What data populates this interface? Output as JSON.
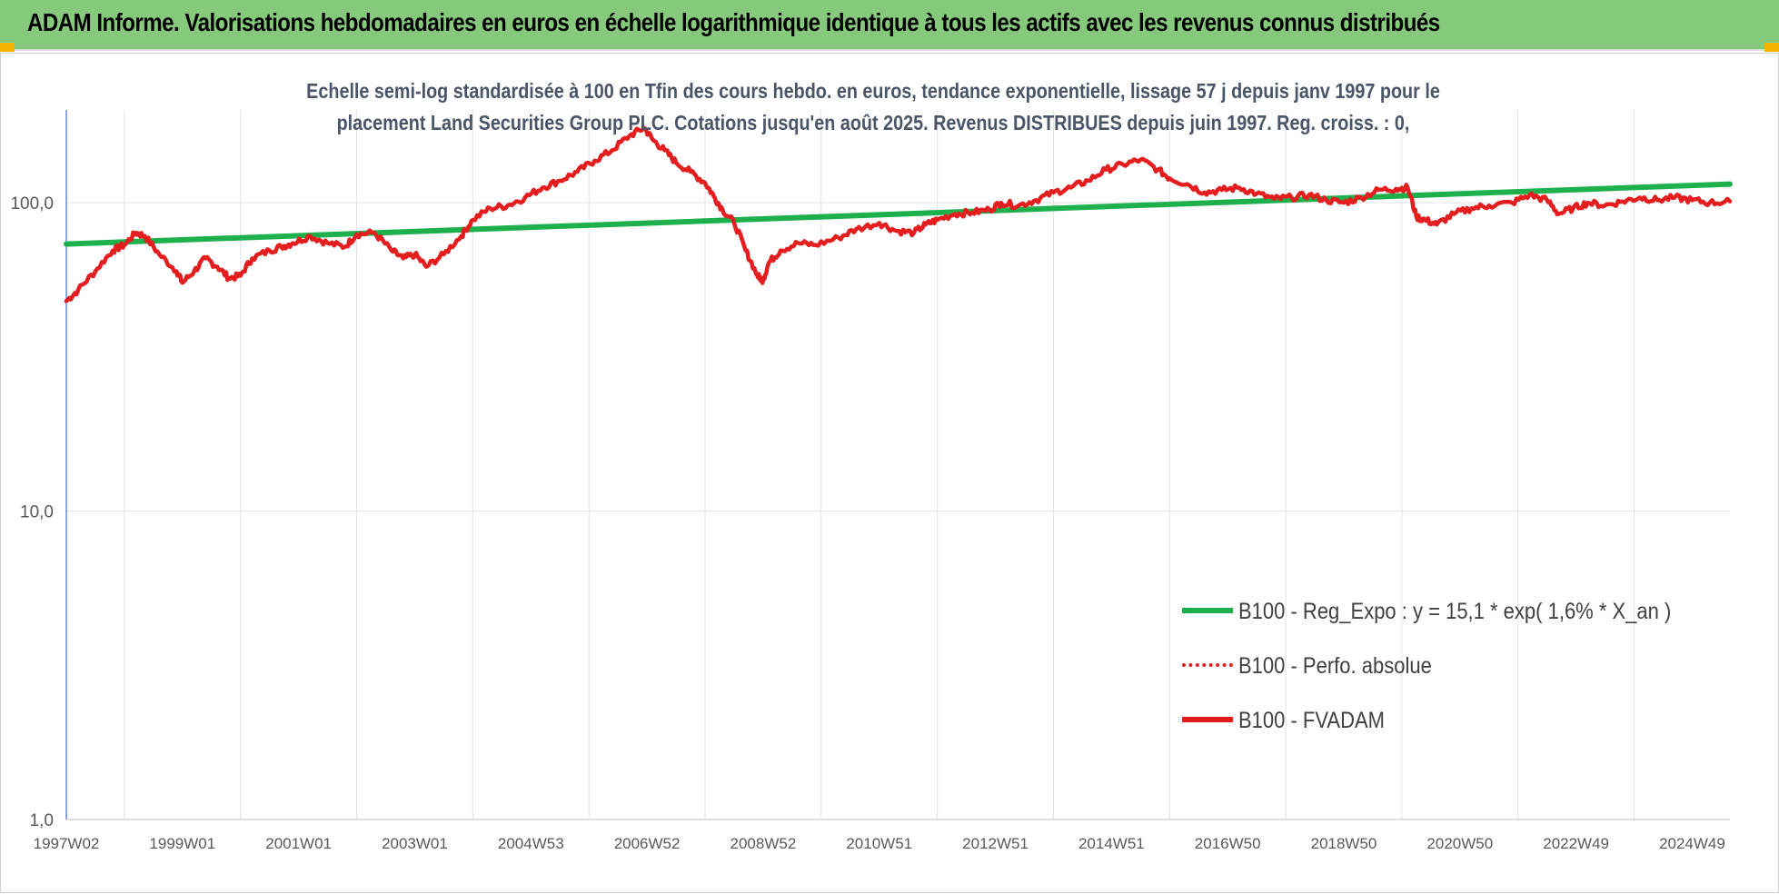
{
  "header": {
    "title": "ADAM Informe. Valorisations hebdomadaires en euros en échelle logarithmique identique à tous les actifs avec les revenus connus distribués"
  },
  "chart_data": {
    "type": "line",
    "title_line1": "Echelle semi-log standardisée à 100 en Tfin des cours hebdo. en euros, tendance exponentielle, lissage 57 j depuis janv 1997 pour le",
    "title_line2": "placement Land Securities Group PLC. Cotations jusqu'en août 2025. Revenus DISTRIBUES depuis juin 1997. Reg. croiss. : 0,",
    "y_scale": "log",
    "ylim": [
      1,
      200
    ],
    "y_ticks": [
      {
        "value": 1,
        "label": "1,0"
      },
      {
        "value": 10,
        "label": "10,0"
      },
      {
        "value": 100,
        "label": "100,0"
      }
    ],
    "x_range": [
      1997.0,
      2025.65
    ],
    "x_ticks": [
      {
        "value": 1997.0,
        "label": "1997W02"
      },
      {
        "value": 1999.0,
        "label": "1999W01"
      },
      {
        "value": 2001.0,
        "label": "2001W01"
      },
      {
        "value": 2003.0,
        "label": "2003W01"
      },
      {
        "value": 2005.0,
        "label": "2004W53"
      },
      {
        "value": 2007.0,
        "label": "2006W52"
      },
      {
        "value": 2009.0,
        "label": "2008W52"
      },
      {
        "value": 2011.0,
        "label": "2010W51"
      },
      {
        "value": 2013.0,
        "label": "2012W51"
      },
      {
        "value": 2015.0,
        "label": "2014W51"
      },
      {
        "value": 2017.0,
        "label": "2016W50"
      },
      {
        "value": 2019.0,
        "label": "2018W50"
      },
      {
        "value": 2021.0,
        "label": "2020W50"
      },
      {
        "value": 2023.0,
        "label": "2022W49"
      },
      {
        "value": 2025.0,
        "label": "2024W49"
      }
    ],
    "grid": "vertical",
    "legend_position": "bottom-right",
    "series": [
      {
        "name": "B100 - Reg_Expo : y = 15,1 * exp( 1,6% *  X_an )",
        "color": "#1fb04e",
        "style": "solid",
        "x": [
          1997.0,
          2025.65
        ],
        "y": [
          73.5,
          115
        ]
      },
      {
        "name": "B100 - Perfo. absolue",
        "color": "#e41e1e",
        "style": "dotted",
        "x": [],
        "y": []
      },
      {
        "name": "B100 - FVADAM",
        "color": "#e41e1e",
        "style": "solid",
        "x": [
          1997.0,
          1997.2,
          1997.5,
          1997.8,
          1998.0,
          1998.2,
          1998.35,
          1998.6,
          1998.9,
          1999.0,
          1999.2,
          1999.4,
          1999.6,
          1999.8,
          2000.0,
          2000.2,
          2000.5,
          2000.7,
          2000.9,
          2001.2,
          2001.5,
          2001.8,
          2002.0,
          2002.3,
          2002.6,
          2002.8,
          2003.0,
          2003.2,
          2003.5,
          2003.8,
          2004.0,
          2004.3,
          2004.6,
          2004.9,
          2005.2,
          2005.5,
          2005.8,
          2006.1,
          2006.4,
          2006.7,
          2006.95,
          2007.1,
          2007.3,
          2007.5,
          2007.75,
          2008.0,
          2008.15,
          2008.3,
          2008.5,
          2008.7,
          2008.9,
          2009.0,
          2009.1,
          2009.3,
          2009.6,
          2009.9,
          2010.3,
          2010.6,
          2011.0,
          2011.3,
          2011.6,
          2011.8,
          2012.0,
          2012.3,
          2012.6,
          2012.9,
          2013.1,
          2013.4,
          2013.7,
          2014.0,
          2014.3,
          2014.6,
          2014.9,
          2015.2,
          2015.5,
          2015.8,
          2016.0,
          2016.3,
          2016.6,
          2016.9,
          2017.2,
          2017.5,
          2017.8,
          2018.1,
          2018.4,
          2018.7,
          2019.0,
          2019.3,
          2019.6,
          2019.9,
          2020.1,
          2020.25,
          2020.4,
          2020.6,
          2020.9,
          2021.2,
          2021.5,
          2021.9,
          2022.2,
          2022.5,
          2022.7,
          2022.95,
          2023.2,
          2023.5,
          2023.8,
          2024.1,
          2024.4,
          2024.7,
          2025.0,
          2025.3,
          2025.65
        ],
        "y": [
          48,
          52,
          60,
          70,
          73,
          80,
          78,
          68,
          60,
          55,
          60,
          66,
          62,
          57,
          58,
          66,
          70,
          72,
          74,
          78,
          74,
          72,
          79,
          80,
          70,
          66,
          68,
          62,
          68,
          78,
          88,
          96,
          98,
          104,
          112,
          118,
          126,
          137,
          148,
          165,
          175,
          160,
          148,
          135,
          126,
          116,
          105,
          95,
          86,
          70,
          58,
          56,
          64,
          70,
          74,
          73,
          77,
          82,
          86,
          81,
          80,
          85,
          88,
          92,
          93,
          95,
          100,
          98,
          102,
          108,
          112,
          118,
          128,
          133,
          138,
          128,
          120,
          115,
          108,
          110,
          112,
          107,
          103,
          104,
          106,
          102,
          100,
          104,
          110,
          111,
          112,
          90,
          88,
          85,
          92,
          96,
          98,
          100,
          106,
          102,
          92,
          96,
          100,
          98,
          101,
          104,
          102,
          104,
          102,
          100,
          101
        ]
      }
    ]
  }
}
